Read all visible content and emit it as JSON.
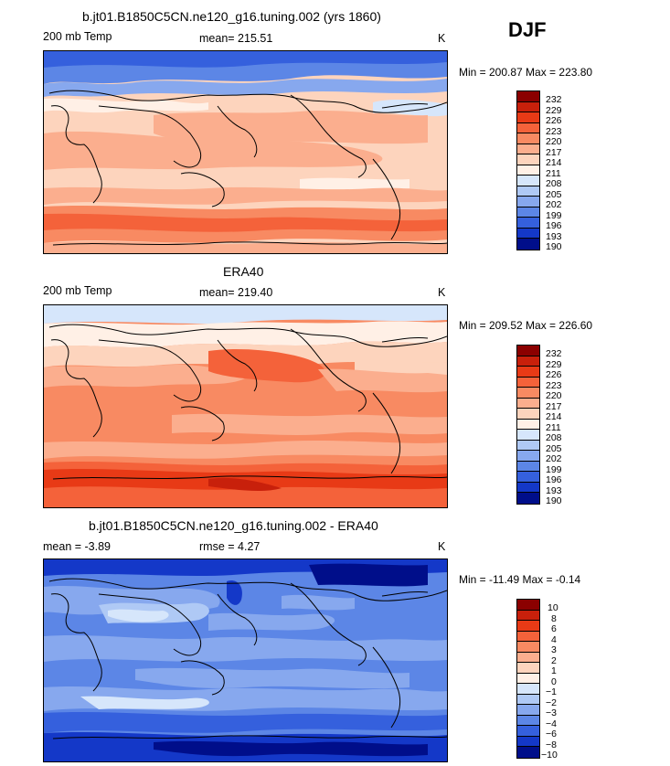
{
  "season": "DJF",
  "panels": [
    {
      "title": "b.jt01.B1850C5CN.ne120_g16.tuning.002 (yrs 1860)",
      "left_label": "200 mb Temp",
      "mid_label": "mean= 215.51",
      "units": "K",
      "minmax": "Min = 200.87 Max = 223.80",
      "legend": [
        "232",
        "229",
        "226",
        "223",
        "220",
        "217",
        "214",
        "211",
        "208",
        "205",
        "202",
        "199",
        "196",
        "193",
        "190"
      ],
      "colors": [
        "#8b0000",
        "#c8200b",
        "#e83a16",
        "#f4623a",
        "#f88a62",
        "#fbae8e",
        "#fdd4bd",
        "#fff0e6",
        "#d6e6fb",
        "#afc9f5",
        "#87a8ee",
        "#5c86e6",
        "#3560dd",
        "#1438c8",
        "#000e8a"
      ]
    },
    {
      "title": "ERA40",
      "left_label": "200 mb Temp",
      "mid_label": "mean= 219.40",
      "units": "K",
      "minmax": "Min = 209.52 Max = 226.60",
      "legend": [
        "232",
        "229",
        "226",
        "223",
        "220",
        "217",
        "214",
        "211",
        "208",
        "205",
        "202",
        "199",
        "196",
        "193",
        "190"
      ],
      "colors": [
        "#8b0000",
        "#c8200b",
        "#e83a16",
        "#f4623a",
        "#f88a62",
        "#fbae8e",
        "#fdd4bd",
        "#fff0e6",
        "#d6e6fb",
        "#afc9f5",
        "#87a8ee",
        "#5c86e6",
        "#3560dd",
        "#1438c8",
        "#000e8a"
      ]
    },
    {
      "title": "b.jt01.B1850C5CN.ne120_g16.tuning.002 - ERA40",
      "left_label": "mean =   -3.89",
      "mid_label": "rmse =    4.27",
      "units": "K",
      "minmax": "Min = -11.49 Max =   -0.14",
      "legend": [
        "10",
        "8",
        "6",
        "4",
        "3",
        "2",
        "1",
        "0",
        "−1",
        "−2",
        "−3",
        "−4",
        "−6",
        "−8",
        "−10"
      ],
      "colors": [
        "#8b0000",
        "#c8200b",
        "#e83a16",
        "#f4623a",
        "#f88a62",
        "#fbae8e",
        "#fdd4bd",
        "#fff0e6",
        "#d6e6fb",
        "#afc9f5",
        "#87a8ee",
        "#5c86e6",
        "#3560dd",
        "#1438c8",
        "#000e8a"
      ]
    }
  ]
}
